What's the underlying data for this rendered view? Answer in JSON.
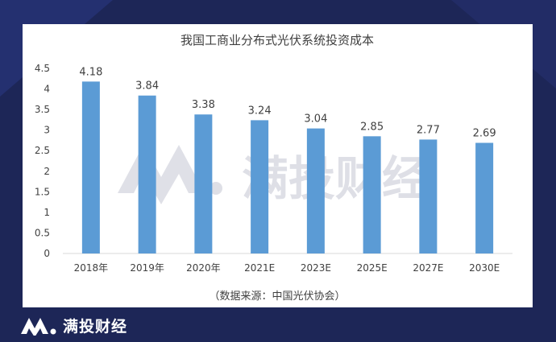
{
  "brand": {
    "name": "满投财经",
    "logo_icon": "mt-logo-icon"
  },
  "watermark": {
    "text": "满投财经"
  },
  "colors": {
    "bar": "#5b9bd5",
    "background": "#1d2657",
    "card": "#ffffff",
    "text": "#404040",
    "axis": "#d9d9d9"
  },
  "chart_data": {
    "type": "bar",
    "title": "我国工商业分布式光伏系统投资成本",
    "categories": [
      "2018年",
      "2019年",
      "2020年",
      "2021E",
      "2023E",
      "2025E",
      "2027E",
      "2030E"
    ],
    "values": [
      4.18,
      3.84,
      3.38,
      3.24,
      3.04,
      2.85,
      2.77,
      2.69
    ],
    "data_labels": [
      "4.18",
      "3.84",
      "3.38",
      "3.24",
      "3.04",
      "2.85",
      "2.77",
      "2.69"
    ],
    "y_ticks": [
      "0",
      "0.5",
      "1",
      "1.5",
      "2",
      "2.5",
      "3",
      "3.5",
      "4",
      "4.5"
    ],
    "ylim": [
      0,
      4.5
    ],
    "grid": false,
    "legend": "none",
    "source": "（数据来源：中国光伏协会）"
  }
}
